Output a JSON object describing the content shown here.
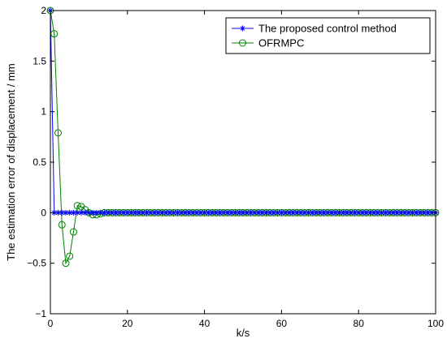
{
  "chart_data": {
    "type": "line",
    "xlabel": "k/s",
    "ylabel": "The estimation error of displacement / mm",
    "xlim": [
      0,
      100
    ],
    "ylim": [
      -1,
      2
    ],
    "xticks": [
      0,
      20,
      40,
      60,
      80,
      100
    ],
    "yticks": [
      -1,
      -0.5,
      0,
      0.5,
      1,
      1.5,
      2
    ],
    "xtick_labels": [
      "0",
      "20",
      "40",
      "60",
      "80",
      "100"
    ],
    "ytick_labels": [
      "−1",
      "−0.5",
      "0",
      "0.5",
      "1",
      "1.5",
      "2"
    ],
    "grid": false,
    "legend_position": "top-right",
    "series": [
      {
        "name": "The proposed control method",
        "color": "#0000ff",
        "marker": "asterisk",
        "x": [
          0,
          1,
          2,
          3,
          4,
          5,
          6,
          7,
          8,
          9,
          10,
          11,
          12,
          13,
          14,
          15,
          16,
          17,
          18,
          19,
          20,
          21,
          22,
          23,
          24,
          25,
          26,
          27,
          28,
          29,
          30,
          31,
          32,
          33,
          34,
          35,
          36,
          37,
          38,
          39,
          40,
          41,
          42,
          43,
          44,
          45,
          46,
          47,
          48,
          49,
          50,
          51,
          52,
          53,
          54,
          55,
          56,
          57,
          58,
          59,
          60,
          61,
          62,
          63,
          64,
          65,
          66,
          67,
          68,
          69,
          70,
          71,
          72,
          73,
          74,
          75,
          76,
          77,
          78,
          79,
          80,
          81,
          82,
          83,
          84,
          85,
          86,
          87,
          88,
          89,
          90,
          91,
          92,
          93,
          94,
          95,
          96,
          97,
          98,
          99,
          100
        ],
        "y": [
          2,
          0,
          0,
          0,
          0,
          0,
          0,
          0,
          0,
          0,
          0,
          0,
          0,
          0,
          0,
          0,
          0,
          0,
          0,
          0,
          0,
          0,
          0,
          0,
          0,
          0,
          0,
          0,
          0,
          0,
          0,
          0,
          0,
          0,
          0,
          0,
          0,
          0,
          0,
          0,
          0,
          0,
          0,
          0,
          0,
          0,
          0,
          0,
          0,
          0,
          0,
          0,
          0,
          0,
          0,
          0,
          0,
          0,
          0,
          0,
          0,
          0,
          0,
          0,
          0,
          0,
          0,
          0,
          0,
          0,
          0,
          0,
          0,
          0,
          0,
          0,
          0,
          0,
          0,
          0,
          0,
          0,
          0,
          0,
          0,
          0,
          0,
          0,
          0,
          0,
          0,
          0,
          0,
          0,
          0,
          0,
          0,
          0,
          0,
          0,
          0
        ]
      },
      {
        "name": "OFRMPC",
        "color": "#008000",
        "marker": "circle",
        "x": [
          0,
          1,
          2,
          3,
          4,
          5,
          6,
          7,
          8,
          9,
          10,
          11,
          12,
          13,
          14,
          15,
          16,
          17,
          18,
          19,
          20,
          21,
          22,
          23,
          24,
          25,
          26,
          27,
          28,
          29,
          30,
          31,
          32,
          33,
          34,
          35,
          36,
          37,
          38,
          39,
          40,
          41,
          42,
          43,
          44,
          45,
          46,
          47,
          48,
          49,
          50,
          51,
          52,
          53,
          54,
          55,
          56,
          57,
          58,
          59,
          60,
          61,
          62,
          63,
          64,
          65,
          66,
          67,
          68,
          69,
          70,
          71,
          72,
          73,
          74,
          75,
          76,
          77,
          78,
          79,
          80,
          81,
          82,
          83,
          84,
          85,
          86,
          87,
          88,
          89,
          90,
          91,
          92,
          93,
          94,
          95,
          96,
          97,
          98,
          99,
          100
        ],
        "y": [
          2,
          1.77,
          0.79,
          -0.12,
          -0.5,
          -0.43,
          -0.19,
          0.07,
          0.06,
          0.03,
          0.0,
          -0.02,
          -0.02,
          -0.01,
          0,
          0,
          0,
          0,
          0,
          0,
          0,
          0,
          0,
          0,
          0,
          0,
          0,
          0,
          0,
          0,
          0,
          0,
          0,
          0,
          0,
          0,
          0,
          0,
          0,
          0,
          0,
          0,
          0,
          0,
          0,
          0,
          0,
          0,
          0,
          0,
          0,
          0,
          0,
          0,
          0,
          0,
          0,
          0,
          0,
          0,
          0,
          0,
          0,
          0,
          0,
          0,
          0,
          0,
          0,
          0,
          0,
          0,
          0,
          0,
          0,
          0,
          0,
          0,
          0,
          0,
          0,
          0,
          0,
          0,
          0,
          0,
          0,
          0,
          0,
          0,
          0,
          0,
          0,
          0,
          0,
          0,
          0,
          0,
          0,
          0,
          0
        ]
      }
    ]
  }
}
